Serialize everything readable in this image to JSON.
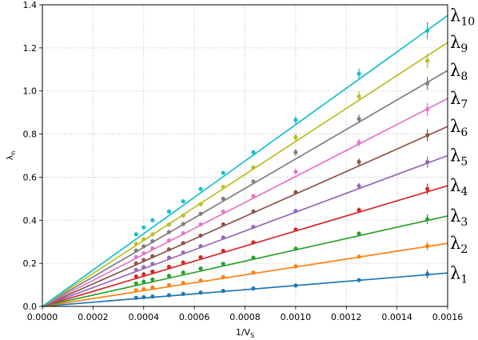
{
  "chart_data": {
    "type": "line",
    "title": "",
    "xlabel_main": "1/V",
    "xlabel_sub": "S",
    "ylabel_main": "λ",
    "ylabel_sub": "n",
    "xlim": [
      0,
      0.0016
    ],
    "ylim": [
      0,
      1.4
    ],
    "xticks": [
      0,
      0.0002,
      0.0004,
      0.0006,
      0.0008,
      0.001,
      0.0012,
      0.0014,
      0.0016
    ],
    "xtick_labels": [
      "0.0000",
      "0.0002",
      "0.0004",
      "0.0006",
      "0.0008",
      "0.0010",
      "0.0012",
      "0.0014",
      "0.0016"
    ],
    "yticks": [
      0,
      0.2,
      0.4,
      0.6,
      0.8,
      1.0,
      1.2,
      1.4
    ],
    "ytick_labels": [
      "0.0",
      "0.2",
      "0.4",
      "0.6",
      "0.8",
      "1.0",
      "1.2",
      "1.4"
    ],
    "grid": true,
    "grid_style": "dotted",
    "legend": "series labels at right edge of plot",
    "x": [
      0.00037,
      0.0004,
      0.000435,
      0.0005,
      0.000556,
      0.000625,
      0.000714,
      0.000833,
      0.001,
      0.00125,
      0.00152
    ],
    "series": [
      {
        "name": "λ",
        "sub": "1",
        "color": "#1f77b4",
        "y": [
          0.04,
          0.043,
          0.046,
          0.052,
          0.058,
          0.064,
          0.072,
          0.083,
          0.097,
          0.122,
          0.15
        ],
        "err": [
          0.003,
          0.003,
          0.003,
          0.003,
          0.003,
          0.004,
          0.004,
          0.004,
          0.005,
          0.008,
          0.02
        ],
        "line_end": 0.155
      },
      {
        "name": "λ",
        "sub": "2",
        "color": "#ff7f0e",
        "y": [
          0.075,
          0.08,
          0.088,
          0.099,
          0.109,
          0.12,
          0.136,
          0.157,
          0.186,
          0.231,
          0.28
        ],
        "err": [
          0.003,
          0.003,
          0.003,
          0.003,
          0.003,
          0.004,
          0.004,
          0.005,
          0.006,
          0.009,
          0.02
        ],
        "line_end": 0.293
      },
      {
        "name": "λ",
        "sub": "3",
        "color": "#2ca02c",
        "y": [
          0.107,
          0.115,
          0.125,
          0.142,
          0.157,
          0.176,
          0.198,
          0.226,
          0.268,
          0.338,
          0.405
        ],
        "err": [
          0.003,
          0.003,
          0.003,
          0.003,
          0.004,
          0.004,
          0.005,
          0.006,
          0.008,
          0.01,
          0.022
        ],
        "line_end": 0.42
      },
      {
        "name": "λ",
        "sub": "4",
        "color": "#d62728",
        "y": [
          0.139,
          0.149,
          0.162,
          0.184,
          0.204,
          0.228,
          0.258,
          0.297,
          0.357,
          0.447,
          0.545
        ],
        "err": [
          0.003,
          0.003,
          0.003,
          0.004,
          0.004,
          0.005,
          0.005,
          0.006,
          0.009,
          0.012,
          0.025
        ],
        "line_end": 0.56
      },
      {
        "name": "λ",
        "sub": "5",
        "color": "#9467bd",
        "y": [
          0.17,
          0.182,
          0.198,
          0.226,
          0.25,
          0.28,
          0.32,
          0.369,
          0.443,
          0.559,
          0.67
        ],
        "err": [
          0.003,
          0.003,
          0.004,
          0.004,
          0.004,
          0.005,
          0.006,
          0.007,
          0.01,
          0.014,
          0.025
        ],
        "line_end": 0.7
      },
      {
        "name": "λ",
        "sub": "6",
        "color": "#8c564b",
        "y": [
          0.2,
          0.215,
          0.233,
          0.265,
          0.294,
          0.329,
          0.381,
          0.441,
          0.53,
          0.671,
          0.795
        ],
        "err": [
          0.003,
          0.003,
          0.004,
          0.004,
          0.005,
          0.005,
          0.006,
          0.008,
          0.011,
          0.016,
          0.028
        ],
        "line_end": 0.835
      },
      {
        "name": "λ",
        "sub": "7",
        "color": "#e377c2",
        "y": [
          0.23,
          0.247,
          0.27,
          0.306,
          0.34,
          0.381,
          0.44,
          0.512,
          0.625,
          0.76,
          0.915
        ],
        "err": [
          0.004,
          0.004,
          0.004,
          0.005,
          0.005,
          0.006,
          0.007,
          0.008,
          0.012,
          0.018,
          0.03
        ],
        "line_end": 0.965
      },
      {
        "name": "λ",
        "sub": "8",
        "color": "#7f7f7f",
        "y": [
          0.259,
          0.279,
          0.303,
          0.345,
          0.383,
          0.43,
          0.5,
          0.58,
          0.715,
          0.87,
          1.035
        ],
        "err": [
          0.004,
          0.004,
          0.004,
          0.005,
          0.006,
          0.006,
          0.008,
          0.009,
          0.016,
          0.02,
          0.03
        ],
        "line_end": 1.095
      },
      {
        "name": "λ",
        "sub": "9",
        "color": "#bcbd22",
        "y": [
          0.29,
          0.312,
          0.335,
          0.38,
          0.422,
          0.475,
          0.555,
          0.645,
          0.785,
          0.975,
          1.14
        ],
        "err": [
          0.004,
          0.004,
          0.004,
          0.005,
          0.006,
          0.007,
          0.008,
          0.01,
          0.017,
          0.022,
          0.035
        ],
        "line_end": 1.225
      },
      {
        "name": "λ",
        "sub": "10",
        "color": "#17becf",
        "y": [
          0.335,
          0.367,
          0.4,
          0.44,
          0.488,
          0.545,
          0.62,
          0.715,
          0.865,
          1.08,
          1.28
        ],
        "err": [
          0.005,
          0.005,
          0.005,
          0.006,
          0.006,
          0.008,
          0.009,
          0.011,
          0.018,
          0.024,
          0.04
        ],
        "line_end": 1.35
      }
    ]
  }
}
